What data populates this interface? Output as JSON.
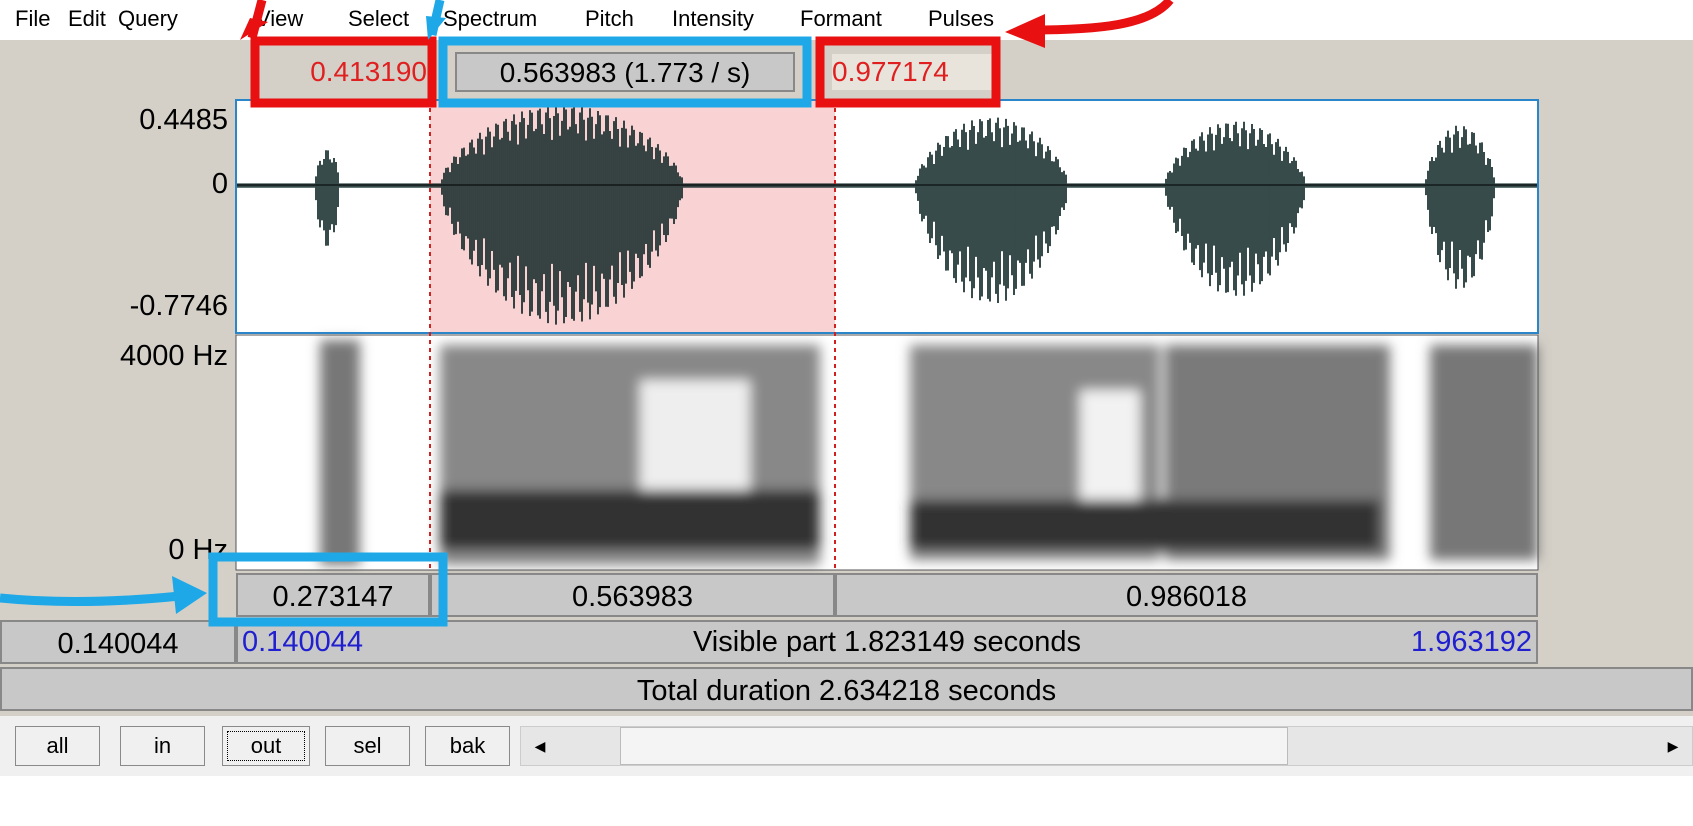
{
  "menu": [
    "File",
    "Edit",
    "Query",
    "View",
    "Select",
    "Spectrum",
    "Pitch",
    "Intensity",
    "Formant",
    "Pulses"
  ],
  "selection": {
    "start": "0.413190",
    "duration": "0.563983 (1.773 / s)",
    "end": "0.977174"
  },
  "waveform": {
    "max": "0.4485",
    "zero": "0",
    "min": "-0.7746"
  },
  "spectrogram": {
    "max": "4000 Hz",
    "min": "0 Hz"
  },
  "segments": [
    "0.273147",
    "0.563983",
    "0.986018"
  ],
  "visible": {
    "window_start": "0.140044",
    "start": "0.140044",
    "label": "Visible part 1.823149 seconds",
    "end": "1.963192"
  },
  "total": "Total duration 2.634218 seconds",
  "buttons": [
    "all",
    "in",
    "out",
    "sel",
    "bak"
  ]
}
